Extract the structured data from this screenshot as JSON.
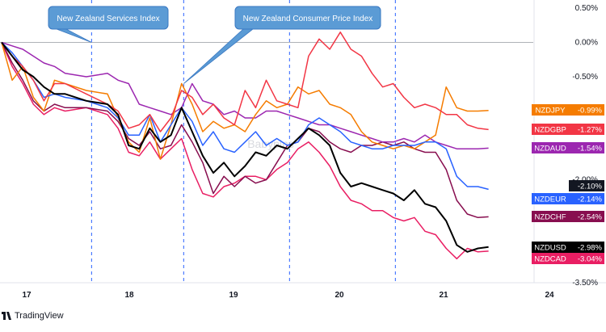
{
  "chart_data": {
    "type": "line",
    "x_ticks": [
      "17",
      "18",
      "19",
      "20",
      "21",
      "24"
    ],
    "yaxis": {
      "min": -3.5,
      "max": 0.5,
      "ticks": [
        "0.50%",
        "0.00%",
        "-0.50%",
        "-2.00%",
        "-3.50%"
      ]
    },
    "grid": "vertical",
    "watermark": "Babypips",
    "annotations": [
      {
        "text": "New Zealand Services Index",
        "x": 0.85
      },
      {
        "text": "New Zealand Consumer Price Index",
        "x": 1.72
      }
    ],
    "event_lines": [
      0.85,
      1.72,
      2.72,
      3.72
    ],
    "series": [
      {
        "name": "NZDJPY",
        "value_label": "-0.99%",
        "last": -0.99,
        "color": "#f57c00",
        "x": [
          0,
          0.1,
          0.2,
          0.3,
          0.4,
          0.5,
          0.6,
          0.8,
          1.0,
          1.1,
          1.2,
          1.3,
          1.4,
          1.5,
          1.6,
          1.7,
          1.8,
          1.9,
          2.0,
          2.1,
          2.2,
          2.3,
          2.4,
          2.5,
          2.6,
          2.7,
          2.8,
          2.9,
          3.0,
          3.1,
          3.2,
          3.3,
          3.4,
          3.5,
          3.6,
          3.7,
          3.8,
          3.9,
          4.0,
          4.1,
          4.2,
          4.3,
          4.4,
          4.5,
          4.6
        ],
        "y": [
          0.0,
          -0.55,
          -0.35,
          -0.8,
          -1.0,
          -0.55,
          -0.6,
          -0.7,
          -0.75,
          -1.1,
          -1.45,
          -1.6,
          -1.1,
          -1.7,
          -1.2,
          -0.6,
          -0.9,
          -1.3,
          -1.15,
          -1.25,
          -1.2,
          -1.3,
          -1.05,
          -0.85,
          -0.95,
          -0.9,
          -0.65,
          -0.75,
          -0.7,
          -0.9,
          -0.95,
          -1.05,
          -1.3,
          -1.45,
          -1.5,
          -1.55,
          -1.5,
          -1.55,
          -1.45,
          -1.35,
          -0.65,
          -0.95,
          -1.0,
          -1.0,
          -0.99
        ]
      },
      {
        "name": "NZDGBP",
        "value_label": "-1.27%",
        "last": -1.27,
        "color": "#f23645",
        "x": [
          0,
          0.1,
          0.2,
          0.3,
          0.4,
          0.5,
          0.6,
          0.8,
          1.0,
          1.1,
          1.2,
          1.3,
          1.4,
          1.5,
          1.6,
          1.7,
          1.8,
          1.9,
          2.0,
          2.1,
          2.2,
          2.3,
          2.4,
          2.5,
          2.6,
          2.7,
          2.8,
          2.9,
          3.0,
          3.1,
          3.2,
          3.3,
          3.4,
          3.5,
          3.6,
          3.7,
          3.8,
          3.9,
          4.0,
          4.1,
          4.2,
          4.3,
          4.4,
          4.5,
          4.6
        ],
        "y": [
          0.0,
          -0.2,
          -0.35,
          -0.55,
          -0.85,
          -0.6,
          -0.6,
          -0.75,
          -0.9,
          -1.0,
          -1.25,
          -1.2,
          -1.05,
          -1.3,
          -1.1,
          -0.7,
          -0.8,
          -1.05,
          -0.9,
          -1.1,
          -1.2,
          -0.7,
          -0.95,
          -0.55,
          -0.85,
          -0.9,
          -0.95,
          -0.2,
          0.05,
          -0.1,
          0.15,
          -0.1,
          -0.2,
          -0.45,
          -0.65,
          -0.6,
          -0.8,
          -0.95,
          -0.9,
          -0.95,
          -1.05,
          -1.05,
          -1.2,
          -1.25,
          -1.27
        ]
      },
      {
        "name": "NZDAUD",
        "value_label": "-1.54%",
        "last": -1.54,
        "color": "#9c27b0",
        "x": [
          0,
          0.1,
          0.2,
          0.3,
          0.4,
          0.5,
          0.6,
          0.8,
          1.0,
          1.1,
          1.2,
          1.3,
          1.4,
          1.5,
          1.6,
          1.7,
          1.8,
          1.9,
          2.0,
          2.1,
          2.2,
          2.3,
          2.4,
          2.5,
          2.6,
          2.7,
          2.8,
          2.9,
          3.0,
          3.1,
          3.2,
          3.3,
          3.4,
          3.5,
          3.6,
          3.7,
          3.8,
          3.9,
          4.0,
          4.1,
          4.2,
          4.3,
          4.4,
          4.5,
          4.6
        ],
        "y": [
          0.0,
          -0.05,
          -0.1,
          -0.2,
          -0.3,
          -0.35,
          -0.45,
          -0.5,
          -0.45,
          -0.55,
          -0.6,
          -0.9,
          -0.95,
          -1.0,
          -1.05,
          -0.95,
          -0.6,
          -0.85,
          -0.9,
          -1.05,
          -1.0,
          -1.1,
          -1.1,
          -1.0,
          -1.0,
          -1.05,
          -1.1,
          -1.15,
          -1.2,
          -1.2,
          -1.25,
          -1.3,
          -1.35,
          -1.4,
          -1.45,
          -1.45,
          -1.4,
          -1.45,
          -1.35,
          -1.45,
          -1.5,
          -1.55,
          -1.55,
          -1.55,
          -1.54
        ]
      },
      {
        "name": "NZDEUR",
        "value_label": "-2.14%",
        "last": -2.14,
        "color": "#2962ff",
        "x": [
          0,
          0.1,
          0.2,
          0.3,
          0.4,
          0.5,
          0.6,
          0.8,
          1.0,
          1.1,
          1.2,
          1.3,
          1.4,
          1.5,
          1.6,
          1.7,
          1.8,
          1.9,
          2.0,
          2.1,
          2.2,
          2.3,
          2.4,
          2.5,
          2.6,
          2.7,
          2.8,
          2.9,
          3.0,
          3.1,
          3.2,
          3.3,
          3.4,
          3.5,
          3.6,
          3.7,
          3.8,
          3.9,
          4.0,
          4.1,
          4.2,
          4.3,
          4.4,
          4.5,
          4.6
        ],
        "y": [
          0.0,
          -0.15,
          -0.35,
          -0.55,
          -0.8,
          -0.75,
          -0.8,
          -0.85,
          -0.95,
          -1.1,
          -1.35,
          -1.35,
          -1.05,
          -1.45,
          -1.2,
          -0.95,
          -1.15,
          -1.5,
          -1.3,
          -1.55,
          -1.6,
          -1.45,
          -1.3,
          -1.5,
          -1.4,
          -1.5,
          -1.45,
          -1.2,
          -1.1,
          -1.2,
          -1.3,
          -1.45,
          -1.5,
          -1.55,
          -1.55,
          -1.5,
          -1.5,
          -1.5,
          -1.45,
          -1.45,
          -1.55,
          -1.95,
          -2.1,
          -2.1,
          -2.14
        ]
      },
      {
        "name": "NZDUSD",
        "value_label": "-2.98%",
        "last": -2.98,
        "color": "#000000",
        "x": [
          0,
          0.1,
          0.2,
          0.3,
          0.4,
          0.5,
          0.6,
          0.8,
          1.0,
          1.1,
          1.2,
          1.3,
          1.4,
          1.5,
          1.6,
          1.7,
          1.8,
          1.9,
          2.0,
          2.1,
          2.2,
          2.3,
          2.4,
          2.5,
          2.6,
          2.7,
          2.8,
          2.9,
          3.0,
          3.1,
          3.2,
          3.3,
          3.4,
          3.5,
          3.6,
          3.7,
          3.8,
          3.9,
          4.0,
          4.1,
          4.2,
          4.3,
          4.4,
          4.5,
          4.6
        ],
        "y": [
          0.0,
          -0.2,
          -0.4,
          -0.5,
          -0.65,
          -0.75,
          -0.75,
          -0.85,
          -0.9,
          -1.05,
          -1.5,
          -1.55,
          -1.25,
          -1.45,
          -1.35,
          -0.95,
          -1.3,
          -1.65,
          -1.9,
          -1.75,
          -1.95,
          -1.8,
          -1.6,
          -1.65,
          -1.5,
          -1.55,
          -1.4,
          -1.25,
          -1.35,
          -1.5,
          -1.9,
          -2.1,
          -2.05,
          -2.1,
          -2.15,
          -2.2,
          -2.3,
          -2.15,
          -2.35,
          -2.4,
          -2.6,
          -2.95,
          -3.05,
          -3.0,
          -2.98
        ]
      },
      {
        "name": "NZDCHF",
        "value_label": "-2.54%",
        "last": -2.54,
        "color": "#880e4f",
        "x": [
          0,
          0.1,
          0.2,
          0.3,
          0.4,
          0.5,
          0.6,
          0.8,
          1.0,
          1.1,
          1.2,
          1.3,
          1.4,
          1.5,
          1.6,
          1.7,
          1.8,
          1.9,
          2.0,
          2.1,
          2.2,
          2.3,
          2.4,
          2.5,
          2.6,
          2.7,
          2.8,
          2.9,
          3.0,
          3.1,
          3.2,
          3.3,
          3.4,
          3.5,
          3.6,
          3.7,
          3.8,
          3.9,
          4.0,
          4.1,
          4.2,
          4.3,
          4.4,
          4.5,
          4.6
        ],
        "y": [
          0.0,
          -0.3,
          -0.55,
          -0.85,
          -1.0,
          -0.9,
          -0.95,
          -0.95,
          -1.0,
          -1.15,
          -1.4,
          -1.5,
          -1.3,
          -1.55,
          -1.5,
          -1.2,
          -1.45,
          -1.75,
          -2.2,
          -1.95,
          -2.1,
          -1.95,
          -2.05,
          -2.0,
          -1.75,
          -1.5,
          -1.45,
          -1.25,
          -1.3,
          -1.45,
          -1.55,
          -1.6,
          -1.5,
          -1.5,
          -1.45,
          -1.5,
          -1.45,
          -1.55,
          -1.6,
          -1.6,
          -1.85,
          -2.3,
          -2.5,
          -2.55,
          -2.54
        ]
      },
      {
        "name": "NZDCAD",
        "value_label": "-3.04%",
        "last": -3.04,
        "color": "#e91e63",
        "x": [
          0,
          0.1,
          0.2,
          0.3,
          0.4,
          0.5,
          0.6,
          0.8,
          1.0,
          1.1,
          1.2,
          1.3,
          1.4,
          1.5,
          1.6,
          1.7,
          1.8,
          1.9,
          2.0,
          2.1,
          2.2,
          2.3,
          2.4,
          2.5,
          2.6,
          2.7,
          2.8,
          2.9,
          3.0,
          3.1,
          3.2,
          3.3,
          3.4,
          3.5,
          3.6,
          3.7,
          3.8,
          3.9,
          4.0,
          4.1,
          4.2,
          4.3,
          4.4,
          4.5,
          4.6
        ],
        "y": [
          0.0,
          -0.35,
          -0.6,
          -0.9,
          -1.05,
          -0.95,
          -1.0,
          -0.95,
          -1.05,
          -1.25,
          -1.6,
          -1.65,
          -1.45,
          -1.7,
          -1.55,
          -1.4,
          -1.85,
          -2.2,
          -2.25,
          -2.1,
          -2.05,
          -1.95,
          -1.95,
          -2.0,
          -1.85,
          -1.75,
          -1.55,
          -1.45,
          -1.6,
          -1.8,
          -2.1,
          -2.3,
          -2.35,
          -2.45,
          -2.45,
          -2.55,
          -2.6,
          -2.55,
          -2.75,
          -2.8,
          -3.0,
          -3.15,
          -3.0,
          -3.05,
          -3.04
        ]
      }
    ],
    "value_boxes": [
      {
        "label": "-2.10%",
        "value": -2.1,
        "color": "#131722"
      }
    ]
  },
  "footer": {
    "brand": "TradingView"
  }
}
